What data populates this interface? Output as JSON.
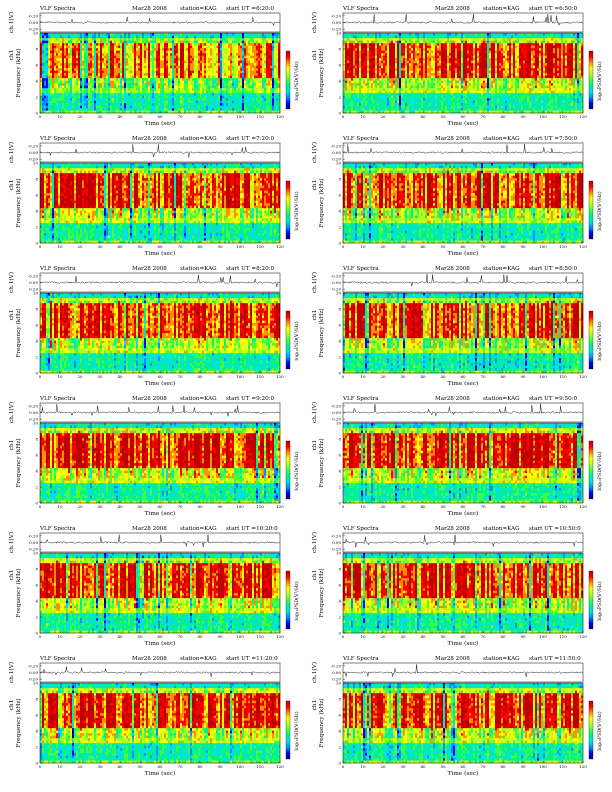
{
  "chart_data": {
    "type": "heatmap",
    "panel_text": {
      "prefix": "VLF Spectra",
      "date": "Mar28 2008",
      "station": "station=KAG",
      "start_prefix": "start  UT ="
    },
    "axes": {
      "xlabel": "Time  (sec)",
      "ylabel_top": "ch.1(V)",
      "ylabel_main": "Frequency  (kHz)",
      "ylabel_ch": "ch1",
      "colorbar_label": "log₁₀PSD(V²/Hz)",
      "xticks": [
        "0",
        "10",
        "20",
        "30",
        "40",
        "50",
        "60",
        "70",
        "80",
        "90",
        "100",
        "110",
        "120"
      ],
      "yticks_main": [
        "0",
        "2",
        "4",
        "6",
        "8",
        "10"
      ],
      "yticks_top": [
        "-0.20",
        "0.00",
        "0.20"
      ],
      "xlim": [
        0,
        120
      ],
      "ylim_main": [
        0,
        10
      ],
      "ylim_top": [
        -0.2,
        0.2
      ]
    },
    "colormap": [
      "#00007a",
      "#0000ff",
      "#0090ff",
      "#00e0e8",
      "#00f090",
      "#40ff40",
      "#b0ff20",
      "#ffff00",
      "#ff9000",
      "#ff0000",
      "#c00000"
    ],
    "line_color": "#000000",
    "start_times": [
      "6:20:0",
      "6:50:0",
      "7:20:0",
      "7:50:0",
      "8:20:0",
      "8:50:0",
      "9:20:0",
      "9:50:0",
      "10:20:0",
      "10:50:0",
      "11:20:0",
      "11:50:0"
    ],
    "panel_seeds": [
      11,
      23,
      37,
      41,
      53,
      67,
      71,
      83,
      97,
      101,
      113,
      127
    ],
    "band_intensity": [
      0.55,
      0.8,
      0.85,
      0.85,
      0.85,
      0.85,
      0.9,
      0.9,
      0.85,
      0.85,
      0.85,
      0.8
    ]
  }
}
